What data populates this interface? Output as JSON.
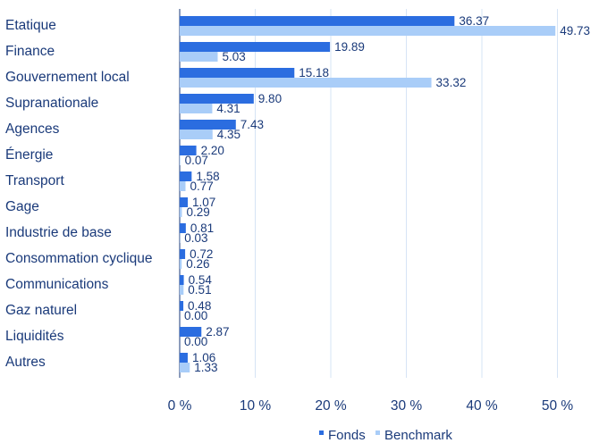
{
  "chart_data": {
    "type": "bar",
    "orientation": "horizontal",
    "categories": [
      "Etatique",
      "Finance",
      "Gouvernement local",
      "Supranationale",
      "Agences",
      "Énergie",
      "Transport",
      "Gage",
      "Industrie de base",
      "Consommation cyclique",
      "Communications",
      "Gaz naturel",
      "Liquidités",
      "Autres"
    ],
    "series": [
      {
        "name": "Fonds",
        "color": "#2b6de0",
        "values": [
          36.37,
          19.89,
          15.18,
          9.8,
          7.43,
          2.2,
          1.58,
          1.07,
          0.81,
          0.72,
          0.54,
          0.48,
          2.87,
          1.06
        ],
        "labels": [
          "36.37",
          "19.89",
          "15.18",
          "9.80",
          "7.43",
          "2.20",
          "1.58",
          "1.07",
          "0.81",
          "0.72",
          "0.54",
          "0.48",
          "2.87",
          "1.06"
        ]
      },
      {
        "name": "Benchmark",
        "color": "#a9cdf8",
        "values": [
          49.73,
          5.03,
          33.32,
          4.31,
          4.35,
          0.07,
          0.77,
          0.29,
          0.03,
          0.26,
          0.51,
          0.0,
          0.0,
          1.33
        ],
        "labels": [
          "49.73",
          "5.03",
          "33.32",
          "4.31",
          "4.35",
          "0.07",
          "0.77",
          "0.29",
          "0.03",
          "0.26",
          "0.51",
          "0.00",
          "0.00",
          "1.33"
        ]
      }
    ],
    "xlim": [
      0,
      50
    ],
    "xticks": [
      0,
      10,
      20,
      30,
      40,
      50
    ],
    "xtick_labels": [
      "0 %",
      "10 %",
      "20 %",
      "30 %",
      "40 %",
      "50 %"
    ],
    "grid": true,
    "legend_position": "bottom",
    "title": "",
    "xlabel": "",
    "ylabel": ""
  }
}
